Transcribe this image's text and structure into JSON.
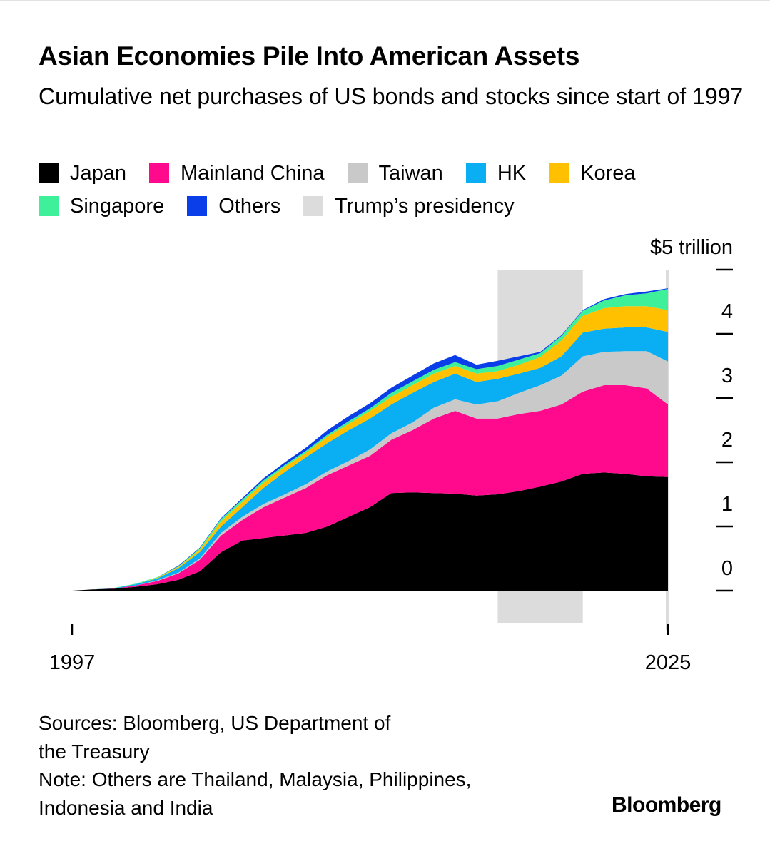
{
  "header": {
    "title": "Asian Economies Pile Into American Assets",
    "subtitle": "Cumulative net purchases of US bonds and stocks since start of 1997"
  },
  "legend": [
    {
      "label": "Japan",
      "color": "#000000"
    },
    {
      "label": "Mainland China",
      "color": "#ff0a8c"
    },
    {
      "label": "Taiwan",
      "color": "#c9c9c9"
    },
    {
      "label": "HK",
      "color": "#0aaef2"
    },
    {
      "label": "Korea",
      "color": "#ffc000"
    },
    {
      "label": "Singapore",
      "color": "#3ef09a"
    },
    {
      "label": "Others",
      "color": "#0a3ee8"
    },
    {
      "label": "Trump’s presidency",
      "color": "#dcdcdc"
    }
  ],
  "chart_data": {
    "type": "area",
    "stacked": true,
    "title": "Asian Economies Pile Into American Assets",
    "subtitle": "Cumulative net purchases of US bonds and stocks since start of 1997",
    "ylabel": "$ trillion",
    "y_unit_label": "$5 trillion",
    "ylim": [
      0,
      5
    ],
    "yticks": [
      0,
      1,
      2,
      3,
      4,
      5
    ],
    "ytick_labels": [
      "0",
      "1",
      "2",
      "3",
      "4",
      "$5 trillion"
    ],
    "xlim": [
      1997,
      2025
    ],
    "xtick_labels": [
      "1997",
      "2025"
    ],
    "x": [
      1997,
      1998,
      1999,
      2000,
      2001,
      2002,
      2003,
      2004,
      2005,
      2006,
      2007,
      2008,
      2009,
      2010,
      2011,
      2012,
      2013,
      2014,
      2015,
      2016,
      2017,
      2018,
      2019,
      2020,
      2021,
      2022,
      2023,
      2024,
      2025
    ],
    "series": [
      {
        "name": "Japan",
        "values": [
          0,
          0.02,
          0.03,
          0.06,
          0.1,
          0.17,
          0.3,
          0.6,
          0.78,
          0.82,
          0.86,
          0.9,
          1.0,
          1.15,
          1.3,
          1.52,
          1.53,
          1.52,
          1.51,
          1.48,
          1.5,
          1.55,
          1.62,
          1.7,
          1.82,
          1.84,
          1.82,
          1.78,
          1.77
        ]
      },
      {
        "name": "Mainland China",
        "values": [
          0,
          0,
          0.005,
          0.02,
          0.05,
          0.1,
          0.18,
          0.26,
          0.32,
          0.48,
          0.59,
          0.7,
          0.8,
          0.8,
          0.8,
          0.83,
          0.97,
          1.16,
          1.29,
          1.2,
          1.18,
          1.2,
          1.18,
          1.2,
          1.28,
          1.36,
          1.38,
          1.37,
          1.13
        ]
      },
      {
        "name": "Taiwan",
        "values": [
          0,
          0,
          0,
          0,
          0.01,
          0.01,
          0.02,
          0.04,
          0.05,
          0.05,
          0.05,
          0.06,
          0.06,
          0.07,
          0.1,
          0.1,
          0.12,
          0.17,
          0.18,
          0.22,
          0.27,
          0.33,
          0.4,
          0.45,
          0.55,
          0.52,
          0.53,
          0.58,
          0.67
        ]
      },
      {
        "name": "HK",
        "values": [
          0,
          0,
          0.005,
          0.02,
          0.03,
          0.07,
          0.1,
          0.1,
          0.15,
          0.25,
          0.35,
          0.42,
          0.44,
          0.48,
          0.48,
          0.45,
          0.46,
          0.4,
          0.4,
          0.35,
          0.35,
          0.3,
          0.27,
          0.3,
          0.37,
          0.36,
          0.37,
          0.37,
          0.46
        ]
      },
      {
        "name": "Korea",
        "values": [
          0,
          0,
          0,
          0,
          0.01,
          0.02,
          0.04,
          0.08,
          0.08,
          0.08,
          0.08,
          0.07,
          0.1,
          0.1,
          0.12,
          0.12,
          0.12,
          0.13,
          0.12,
          0.13,
          0.12,
          0.14,
          0.17,
          0.25,
          0.26,
          0.32,
          0.33,
          0.33,
          0.34
        ]
      },
      {
        "name": "Singapore",
        "values": [
          0,
          0,
          0.005,
          0.01,
          0.01,
          0.01,
          0.02,
          0.04,
          0.04,
          0.04,
          0.03,
          0.03,
          0.03,
          0.04,
          0.04,
          0.06,
          0.06,
          0.06,
          0.06,
          0.07,
          0.08,
          0.08,
          0.06,
          0.07,
          0.08,
          0.12,
          0.17,
          0.2,
          0.33
        ]
      },
      {
        "name": "Others",
        "values": [
          0,
          0,
          0,
          0,
          0,
          0.01,
          0.01,
          0.01,
          0.02,
          0.03,
          0.04,
          0.05,
          0.07,
          0.08,
          0.08,
          0.08,
          0.09,
          0.1,
          0.11,
          0.07,
          0.08,
          0.05,
          0.02,
          0.01,
          0.01,
          0.02,
          0.02,
          0.03,
          0.01
        ]
      }
    ],
    "shaded_periods": [
      {
        "label": "Trump’s presidency",
        "start": 2017.0,
        "end": 2021.0
      },
      {
        "label": "Trump’s presidency",
        "start": 2024.9,
        "end": 2025.0
      }
    ],
    "grid": false,
    "legend_position": "top"
  },
  "footer": {
    "sources": "Sources: Bloomberg, US Department of",
    "sources2": "the Treasury",
    "note": "Note: Others are Thailand, Malaysia, Philippines,",
    "note2": "Indonesia and India",
    "logo": "Bloomberg"
  }
}
